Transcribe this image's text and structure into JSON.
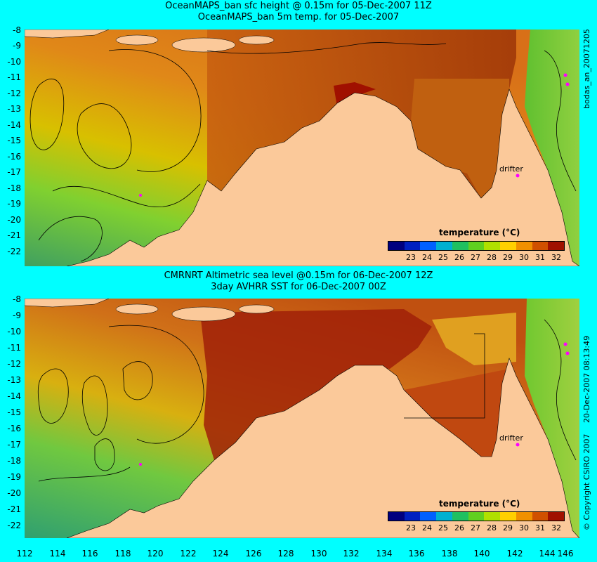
{
  "top": {
    "title1": "OceanMAPS_ban sfc height @ 0.15m for 05-Dec-2007 11Z",
    "title2": "OceanMAPS_ban 5m temp. for 05-Dec-2007",
    "side_label": "bodas_an_20071205",
    "drifter_label": "drifter"
  },
  "bottom": {
    "title1": "CMRNRT Altimetric sea level  @0.15m  for 06-Dec-2007 12Z",
    "title2": "3day AVHRR SST for 06-Dec-2007 00Z",
    "side_label": "20-Dec-2007 08:13:49",
    "copyright": "© Copyright CSIRO 2007",
    "drifter_label": "drifter"
  },
  "colorbar": {
    "title": "temperature (°C)",
    "ticks": [
      "23",
      "24",
      "25",
      "26",
      "27",
      "28",
      "29",
      "30",
      "31",
      "32"
    ],
    "colors": [
      "#00007f",
      "#0020c0",
      "#0060ff",
      "#00b0d0",
      "#20c060",
      "#60d020",
      "#b0e000",
      "#ffd000",
      "#f09000",
      "#d05000",
      "#a01000"
    ]
  },
  "axes": {
    "lat_ticks": [
      "-8",
      "-9",
      "-10",
      "-11",
      "-12",
      "-13",
      "-14",
      "-15",
      "-16",
      "-17",
      "-18",
      "-19",
      "-20",
      "-21",
      "-22"
    ],
    "lon_ticks": [
      "112",
      "114",
      "116",
      "118",
      "120",
      "122",
      "124",
      "126",
      "128",
      "130",
      "132",
      "134",
      "136",
      "138",
      "140",
      "142",
      "144",
      "146"
    ]
  },
  "colors": {
    "background": "#00ffff",
    "land": "#fbc99a",
    "warm": "#c86010",
    "hot": "#a01000",
    "cool": "#60c040",
    "drifter": "#ff00ff"
  }
}
